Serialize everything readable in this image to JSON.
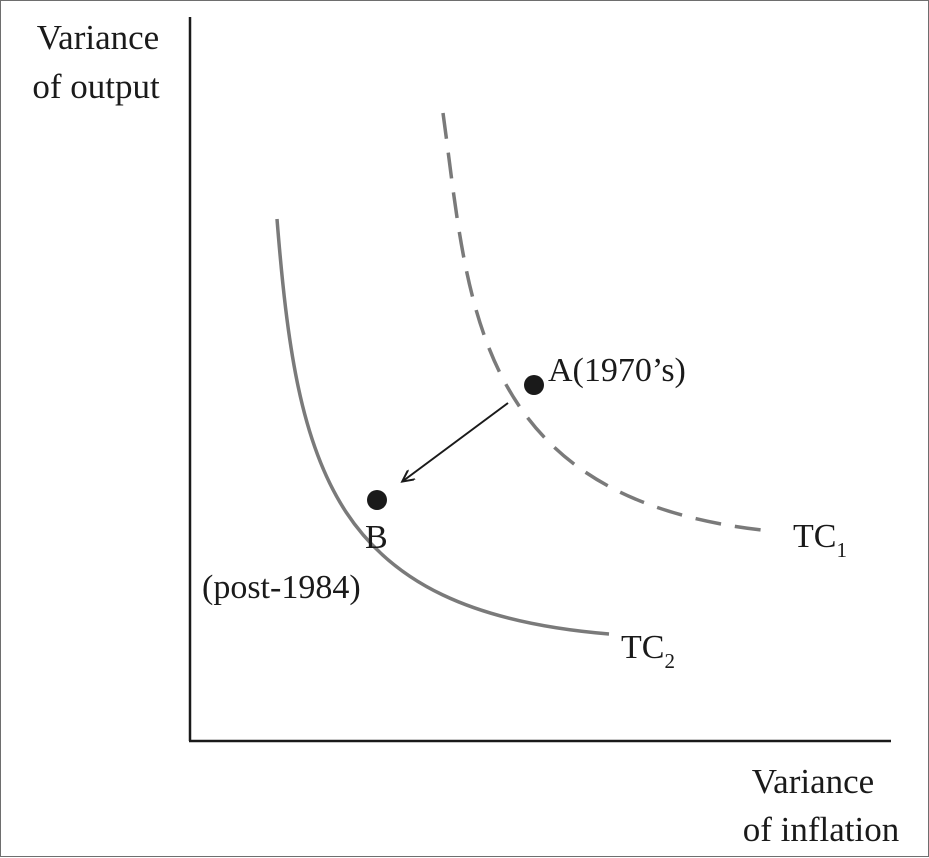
{
  "chart_data": {
    "type": "line",
    "ylabel": [
      "Variance",
      "of output"
    ],
    "xlabel": [
      "Variance",
      "of inflation"
    ],
    "curves": [
      {
        "name": "TC",
        "subscript": "1",
        "style": "dashed",
        "color": "#7a7a7a"
      },
      {
        "name": "TC",
        "subscript": "2",
        "style": "solid",
        "color": "#7a7a7a"
      }
    ],
    "points": [
      {
        "id": "A",
        "label": "A(1970’s)",
        "on_curve": "TC1"
      },
      {
        "id": "B",
        "label": "B",
        "sublabel": "(post-1984)",
        "on_curve": "TC2"
      }
    ],
    "arrow": {
      "from": "A",
      "to": "B"
    },
    "colors": {
      "curve": "#7a7a7a",
      "ink": "#1a1a1a"
    }
  }
}
